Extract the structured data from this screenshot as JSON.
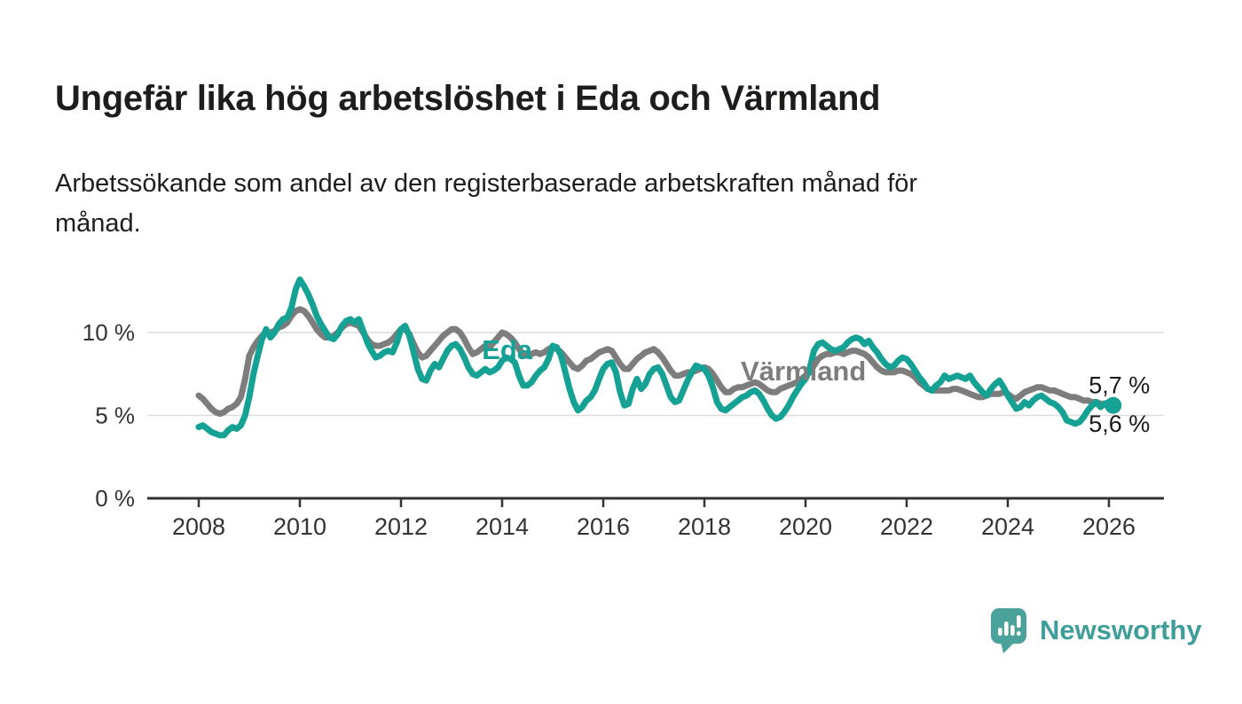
{
  "header": {
    "title": "Ungefär lika hög arbetslöshet i Eda och Värmland",
    "subtitle_lines": [
      "Arbetssökande som andel av den registerbaserade arbetskraften månad för",
      "månad."
    ]
  },
  "chart_data": {
    "type": "line",
    "unit": "%",
    "frequency": "monthly",
    "x_start": "2008-01",
    "x_end": "2026-02",
    "grid": true,
    "x_axis": {
      "tick_years": [
        2008,
        2010,
        2012,
        2014,
        2016,
        2018,
        2020,
        2022,
        2024,
        2026
      ]
    },
    "y_axis": {
      "ticks": [
        {
          "label": "0 %",
          "value": 0
        },
        {
          "label": "5 %",
          "value": 5
        },
        {
          "label": "10 %",
          "value": 10
        }
      ],
      "range": [
        0,
        13.5
      ]
    },
    "colors": {
      "axis": "#333333",
      "grid": "#dcdcdc",
      "label_text": "#1a1a1a"
    },
    "series": [
      {
        "id": "varmland",
        "name": "Värmland",
        "color": "#7d7d7d",
        "end_dot": false,
        "latest_label": "5,7 %",
        "values": [
          6.2,
          6.0,
          5.7,
          5.4,
          5.2,
          5.1,
          5.2,
          5.4,
          5.5,
          5.7,
          6.1,
          7.2,
          8.6,
          9.1,
          9.5,
          9.8,
          10.0,
          10.0,
          10.1,
          10.3,
          10.4,
          10.6,
          11.0,
          11.3,
          11.4,
          11.3,
          11.0,
          10.6,
          10.2,
          9.9,
          9.7,
          9.7,
          9.8,
          10.0,
          10.3,
          10.5,
          10.6,
          10.5,
          10.4,
          10.0,
          9.6,
          9.3,
          9.2,
          9.2,
          9.3,
          9.4,
          9.6,
          9.9,
          10.2,
          10.2,
          9.9,
          9.3,
          8.8,
          8.5,
          8.6,
          8.9,
          9.2,
          9.5,
          9.8,
          10.0,
          10.2,
          10.2,
          10.0,
          9.6,
          9.1,
          8.7,
          8.8,
          9.0,
          9.2,
          9.1,
          9.4,
          9.7,
          10.0,
          9.9,
          9.7,
          9.4,
          9.0,
          8.7,
          8.6,
          8.7,
          8.8,
          8.7,
          8.8,
          9.0,
          9.1,
          9.0,
          8.8,
          8.5,
          8.2,
          7.9,
          7.8,
          8.0,
          8.3,
          8.4,
          8.6,
          8.8,
          8.9,
          9.0,
          8.9,
          8.5,
          8.1,
          7.8,
          7.8,
          8.1,
          8.4,
          8.6,
          8.8,
          8.9,
          9.0,
          8.8,
          8.5,
          8.1,
          7.7,
          7.4,
          7.4,
          7.5,
          7.6,
          7.6,
          7.7,
          7.8,
          7.9,
          7.8,
          7.5,
          7.1,
          6.7,
          6.4,
          6.4,
          6.6,
          6.7,
          6.7,
          6.8,
          6.9,
          7.0,
          6.9,
          6.7,
          6.5,
          6.4,
          6.4,
          6.6,
          6.7,
          6.8,
          6.9,
          7.0,
          7.2,
          7.4,
          7.6,
          8.0,
          8.4,
          8.6,
          8.7,
          8.7,
          8.8,
          8.8,
          8.7,
          8.8,
          8.9,
          8.9,
          8.8,
          8.7,
          8.5,
          8.2,
          7.9,
          7.7,
          7.6,
          7.6,
          7.6,
          7.7,
          7.7,
          7.6,
          7.5,
          7.3,
          7.0,
          6.8,
          6.6,
          6.5,
          6.5,
          6.5,
          6.5,
          6.5,
          6.6,
          6.6,
          6.5,
          6.4,
          6.3,
          6.2,
          6.1,
          6.1,
          6.2,
          6.3,
          6.3,
          6.3,
          6.4,
          6.3,
          6.1,
          6.0,
          6.2,
          6.4,
          6.5,
          6.6,
          6.7,
          6.7,
          6.6,
          6.5,
          6.5,
          6.4,
          6.3,
          6.2,
          6.1,
          6.1,
          6.0,
          5.9,
          5.9,
          5.8,
          5.8,
          5.7,
          5.7,
          5.7,
          5.7
        ]
      },
      {
        "id": "eda",
        "name": "Eda",
        "color": "#16a195",
        "end_dot": true,
        "latest_label": "5,6 %",
        "values": [
          4.3,
          4.4,
          4.2,
          4.0,
          3.9,
          3.8,
          3.8,
          4.1,
          4.3,
          4.2,
          4.4,
          5.0,
          6.1,
          7.5,
          8.6,
          9.6,
          10.2,
          9.7,
          10.0,
          10.5,
          10.8,
          10.9,
          11.5,
          12.6,
          13.2,
          12.8,
          12.3,
          11.7,
          11.0,
          10.5,
          10.1,
          9.7,
          9.6,
          9.9,
          10.4,
          10.7,
          10.8,
          10.6,
          10.8,
          10.1,
          9.4,
          8.9,
          8.5,
          8.6,
          8.8,
          8.9,
          8.8,
          9.4,
          10.2,
          10.4,
          9.8,
          8.8,
          7.8,
          7.2,
          7.1,
          7.7,
          8.1,
          7.9,
          8.4,
          8.9,
          9.2,
          9.3,
          9.0,
          8.5,
          7.9,
          7.5,
          7.4,
          7.6,
          7.8,
          7.6,
          7.7,
          7.9,
          8.3,
          8.5,
          8.4,
          8.2,
          7.4,
          6.8,
          6.8,
          7.0,
          7.4,
          7.7,
          7.9,
          8.4,
          9.2,
          9.1,
          8.6,
          7.6,
          6.6,
          5.8,
          5.3,
          5.5,
          5.9,
          6.1,
          6.5,
          7.2,
          7.8,
          8.1,
          8.2,
          7.6,
          6.4,
          5.6,
          5.7,
          6.6,
          7.2,
          6.6,
          6.9,
          7.5,
          7.8,
          7.9,
          7.5,
          6.8,
          6.1,
          5.8,
          5.9,
          6.5,
          7.1,
          7.6,
          8.0,
          7.9,
          7.8,
          7.4,
          6.7,
          5.8,
          5.4,
          5.3,
          5.5,
          5.7,
          5.9,
          6.1,
          6.2,
          6.4,
          6.5,
          6.3,
          5.9,
          5.4,
          5.0,
          4.8,
          4.9,
          5.2,
          5.6,
          6.1,
          6.5,
          6.9,
          7.2,
          7.8,
          8.9,
          9.3,
          9.4,
          9.2,
          9.0,
          8.9,
          9.0,
          9.1,
          9.4,
          9.6,
          9.7,
          9.6,
          9.3,
          9.5,
          9.1,
          8.8,
          8.4,
          8.1,
          7.9,
          8.0,
          8.3,
          8.5,
          8.4,
          8.1,
          7.7,
          7.3,
          7.0,
          6.6,
          6.5,
          6.8,
          7.0,
          7.4,
          7.2,
          7.3,
          7.4,
          7.3,
          7.2,
          7.4,
          7.0,
          6.7,
          6.4,
          6.2,
          6.6,
          6.9,
          7.1,
          6.7,
          6.2,
          5.8,
          5.4,
          5.5,
          5.8,
          5.6,
          5.9,
          6.1,
          6.2,
          6.0,
          5.8,
          5.7,
          5.5,
          5.2,
          4.7,
          4.6,
          4.5,
          4.6,
          4.9,
          5.3,
          5.6,
          5.8,
          5.5,
          5.7,
          5.8,
          5.6
        ]
      }
    ],
    "annotations": [
      {
        "name": "series-label-eda",
        "text": "Eda",
        "x_year": 2013.6,
        "y_value": 8.4,
        "color": "#16a195",
        "bold": true,
        "size": 31
      },
      {
        "name": "series-label-varmland",
        "text": "Värmland",
        "x_year": 2018.72,
        "y_value": 7.1,
        "color": "#7d7d7d",
        "bold": true,
        "size": 31
      },
      {
        "name": "end-value-label-varmland",
        "text": "5,7 %",
        "x_year": 2025.6,
        "y_value": 6.35,
        "color": "#1a1a1a",
        "bold": false,
        "size": 27
      },
      {
        "name": "end-value-label-eda",
        "text": "5,6 %",
        "x_year": 2025.6,
        "y_value": 4.0,
        "color": "#1a1a1a",
        "bold": false,
        "size": 27
      }
    ]
  },
  "footer": {
    "brand": "Newsworthy",
    "icon": "bar-chart-speech-bubble-icon",
    "icon_color": "#4ba29b",
    "text_color": "#3f9e99"
  }
}
